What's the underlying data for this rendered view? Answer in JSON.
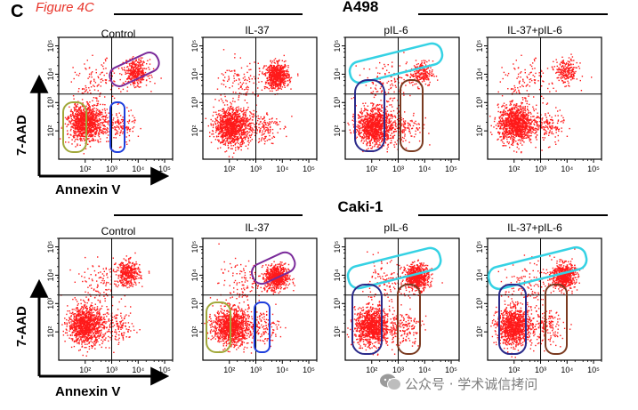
{
  "figure": {
    "panel_letter": "C",
    "label": "Figure 4C",
    "watermark": "公众号 · 学术诚信拷问",
    "colors": {
      "dots": "#ff1a1a",
      "label": "#e8342a",
      "olive": "#a1a83a",
      "blue": "#1f3fdc",
      "purple": "#7a2a9a",
      "cyan": "#35d2e4",
      "brown": "#7a3a20",
      "navy": "#2a2a8a"
    }
  },
  "axes": {
    "y_label": "7-AAD",
    "x_label": "Annexin V",
    "tick_labels": [
      "10²",
      "10³",
      "10⁴",
      "10⁵"
    ]
  },
  "chart_data": [
    {
      "type": "scatter",
      "cell_line": "A498",
      "conditions": [
        "Control",
        "IL-37",
        "pIL-6",
        "IL-37+pIL-6"
      ],
      "x_scale": "log",
      "y_scale": "log",
      "xlim": [
        10,
        200000
      ],
      "ylim": [
        10,
        200000
      ],
      "quadrant_gate": {
        "x": 1000,
        "y": 2000
      },
      "grid": false,
      "populations": [
        {
          "condition": "Control",
          "live_center": [
            100,
            200
          ],
          "late_apoptotic_center": [
            8000,
            12000
          ],
          "late_density": "medium"
        },
        {
          "condition": "IL-37",
          "live_center": [
            120,
            150
          ],
          "late_apoptotic_center": [
            6000,
            9000
          ],
          "late_density": "high"
        },
        {
          "condition": "pIL-6",
          "live_center": [
            120,
            150
          ],
          "late_apoptotic_center": [
            7000,
            11000
          ],
          "late_density": "low"
        },
        {
          "condition": "IL-37+pIL-6",
          "live_center": [
            110,
            180
          ],
          "late_apoptotic_center": [
            9000,
            13000
          ],
          "late_density": "low"
        }
      ]
    },
    {
      "type": "scatter",
      "cell_line": "Caki-1",
      "conditions": [
        "Control",
        "IL-37",
        "pIL-6",
        "IL-37+pIL-6"
      ],
      "x_scale": "log",
      "y_scale": "log",
      "xlim": [
        10,
        200000
      ],
      "ylim": [
        10,
        200000
      ],
      "quadrant_gate": {
        "x": 1000,
        "y": 2000
      },
      "grid": false,
      "populations": [
        {
          "condition": "Control",
          "live_center": [
            100,
            180
          ],
          "late_apoptotic_center": [
            4000,
            12000
          ],
          "late_density": "medium"
        },
        {
          "condition": "IL-37",
          "live_center": [
            110,
            160
          ],
          "late_apoptotic_center": [
            6000,
            9000
          ],
          "late_density": "high"
        },
        {
          "condition": "pIL-6",
          "live_center": [
            100,
            160
          ],
          "late_apoptotic_center": [
            5000,
            9000
          ],
          "late_density": "high"
        },
        {
          "condition": "IL-37+pIL-6",
          "live_center": [
            100,
            160
          ],
          "late_apoptotic_center": [
            7000,
            10000
          ],
          "late_density": "high"
        }
      ]
    }
  ]
}
